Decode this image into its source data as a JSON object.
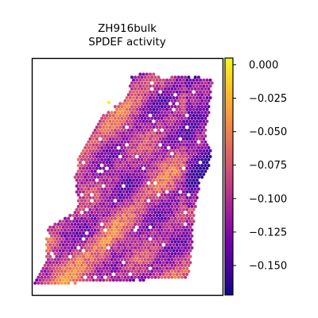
{
  "chart_data": {
    "type": "heatmap",
    "subtype": "spatial-spot-map",
    "title_lines": [
      "ZH916bulk",
      "SPDEF activity"
    ],
    "xlabel": "",
    "ylabel": "",
    "colormap": "plasma",
    "colorbar": {
      "vmin": -0.172,
      "vmax": 0.005,
      "ticks": [
        0.0,
        -0.025,
        -0.05,
        -0.075,
        -0.1,
        -0.125,
        -0.15
      ],
      "tick_labels": [
        "0.000",
        "−0.025",
        "−0.050",
        "−0.075",
        "−0.100",
        "−0.125",
        "−0.150"
      ]
    },
    "value_summary": {
      "typical_min": -0.16,
      "typical_max": -0.03,
      "max_spot_value": 0.003
    },
    "grid": false,
    "legend": "colorbar-right"
  },
  "colors": {
    "plasma": [
      "#0d0887",
      "#46039f",
      "#7201a8",
      "#9c179e",
      "#bd3786",
      "#d8576b",
      "#ed7953",
      "#fb9f3a",
      "#fdca26",
      "#f0f921"
    ]
  }
}
